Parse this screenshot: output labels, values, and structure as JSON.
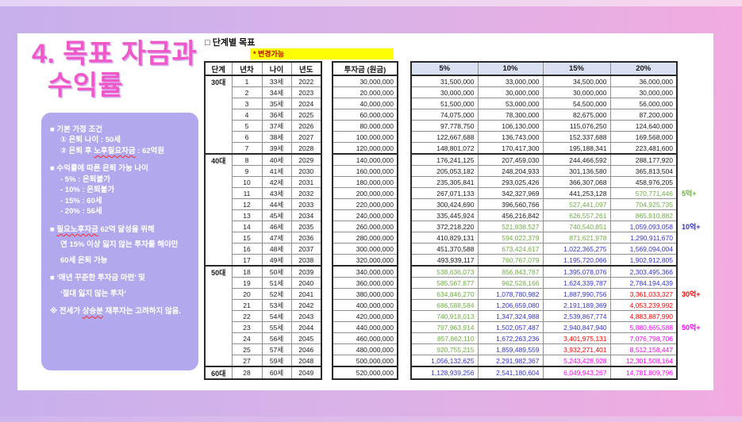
{
  "slide": {
    "title_line1": "4. 목표 자금과",
    "title_line2": "수익률"
  },
  "sidebar": {
    "sections": [
      {
        "lines": [
          {
            "indent": 0,
            "parts": [
              {
                "t": "■ 기본 가정 조건"
              }
            ]
          },
          {
            "indent": 1,
            "parts": [
              {
                "t": "① 은퇴 나이 : 50세"
              }
            ]
          },
          {
            "indent": 1,
            "parts": [
              {
                "t": "② 은퇴 후 "
              },
              {
                "t": "노후필요자금",
                "wavy": true
              },
              {
                "t": " : 62억원"
              }
            ]
          }
        ]
      },
      {
        "lines": [
          {
            "indent": 0,
            "parts": [
              {
                "t": "■ 수익률에 따른 은퇴 가능 나이"
              }
            ]
          },
          {
            "indent": 1,
            "parts": [
              {
                "t": "- 5% : 은퇴불가"
              }
            ]
          },
          {
            "indent": 1,
            "parts": [
              {
                "t": "- 10% : 은퇴불가"
              }
            ]
          },
          {
            "indent": 1,
            "parts": [
              {
                "t": "- 15% : 60세"
              }
            ]
          },
          {
            "indent": 1,
            "parts": [
              {
                "t": "- 20% : 56세"
              }
            ]
          }
        ]
      },
      {
        "lines": [
          {
            "indent": 0,
            "loose": true,
            "parts": [
              {
                "t": "■ "
              },
              {
                "t": "필요노후자금",
                "wavy": true
              },
              {
                "t": " 62억 달성을 위해"
              }
            ]
          },
          {
            "indent": 1,
            "loose": true,
            "parts": [
              {
                "t": "연 15% 이상  잃지 않는 투자를 해야만"
              }
            ]
          },
          {
            "indent": 1,
            "loose": true,
            "parts": [
              {
                "t": "60세 은퇴 가능"
              }
            ]
          }
        ]
      },
      {
        "lines": [
          {
            "indent": 0,
            "loose": true,
            "parts": [
              {
                "t": "■ ‘매년 꾸준한 투자금 마련’ 및"
              }
            ]
          },
          {
            "indent": 1,
            "loose": true,
            "parts": [
              {
                "t": "‘절대 잃지 않는 투자’"
              }
            ]
          }
        ]
      },
      {
        "lines": [
          {
            "indent": 0,
            "parts": [
              {
                "t": "※ 전세가 "
              },
              {
                "t": "상승분",
                "wavy": true
              },
              {
                "t": " 재투자는 고려하지 않음."
              }
            ]
          }
        ]
      }
    ]
  },
  "table": {
    "caption": "□ 단계별 목표",
    "note": "* 변경가능",
    "headers": {
      "stage": "단계",
      "no": "년차",
      "age": "나이",
      "year": "년도",
      "invest": "투자금 (원금)",
      "rates": [
        "5%",
        "10%",
        "15%",
        "20%"
      ]
    },
    "groups": [
      {
        "label": "30대",
        "rows": [
          {
            "no": "1",
            "age": "33세",
            "year": "2022",
            "invest": "30,000,000",
            "returns": [
              "31,500,000",
              "33,000,000",
              "34,500,000",
              "36,000,000"
            ]
          },
          {
            "no": "2",
            "age": "34세",
            "year": "2023",
            "invest": "20,000,000",
            "returns": [
              "30,000,000",
              "30,000,000",
              "30,000,000",
              "30,000,000"
            ]
          },
          {
            "no": "3",
            "age": "35세",
            "year": "2024",
            "invest": "40,000,000",
            "returns": [
              "51,500,000",
              "53,000,000",
              "54,500,000",
              "56,000,000"
            ]
          },
          {
            "no": "4",
            "age": "36세",
            "year": "2025",
            "invest": "60,000,000",
            "returns": [
              "74,075,000",
              "78,300,000",
              "82,675,000",
              "87,200,000"
            ]
          },
          {
            "no": "5",
            "age": "37세",
            "year": "2026",
            "invest": "80,000,000",
            "returns": [
              "97,778,750",
              "106,130,000",
              "115,076,250",
              "124,640,000"
            ]
          },
          {
            "no": "6",
            "age": "38세",
            "year": "2027",
            "invest": "100,000,000",
            "returns": [
              "122,667,688",
              "136,743,000",
              "152,337,688",
              "169,568,000"
            ]
          },
          {
            "no": "7",
            "age": "39세",
            "year": "2028",
            "invest": "120,000,000",
            "returns": [
              "148,801,072",
              "170,417,300",
              "195,188,341",
              "223,481,600"
            ]
          }
        ]
      },
      {
        "label": "40대",
        "rows": [
          {
            "no": "8",
            "age": "40세",
            "year": "2029",
            "invest": "140,000,000",
            "returns": [
              "176,241,125",
              "207,459,030",
              "244,466,592",
              "288,177,920"
            ]
          },
          {
            "no": "9",
            "age": "41세",
            "year": "2030",
            "invest": "160,000,000",
            "returns": [
              "205,053,182",
              "248,204,933",
              "301,136,580",
              "365,813,504"
            ]
          },
          {
            "no": "10",
            "age": "42세",
            "year": "2031",
            "invest": "180,000,000",
            "returns": [
              "235,305,841",
              "293,025,426",
              "366,307,068",
              "458,976,205"
            ]
          },
          {
            "no": "11",
            "age": "43세",
            "year": "2032",
            "invest": "200,000,000",
            "returns": [
              "267,071,133",
              "342,327,969",
              "441,253,128",
              "570,771,446"
            ],
            "ann": {
              "text": "5억+",
              "key": "val-green"
            }
          },
          {
            "no": "12",
            "age": "44세",
            "year": "2033",
            "invest": "220,000,000",
            "returns": [
              "300,424,690",
              "396,560,766",
              "527,441,097",
              "704,925,735"
            ]
          },
          {
            "no": "13",
            "age": "45세",
            "year": "2034",
            "invest": "240,000,000",
            "returns": [
              "335,445,924",
              "456,216,842",
              "626,557,261",
              "865,910,882"
            ]
          },
          {
            "no": "14",
            "age": "46세",
            "year": "2035",
            "invest": "260,000,000",
            "returns": [
              "372,218,220",
              "521,838,527",
              "740,540,851",
              "1,059,093,058"
            ],
            "ann": {
              "text": "10억+",
              "key": "val-blue"
            }
          },
          {
            "no": "15",
            "age": "47세",
            "year": "2036",
            "invest": "280,000,000",
            "returns": [
              "410,829,131",
              "594,022,379",
              "871,621,978",
              "1,290,911,670"
            ]
          },
          {
            "no": "16",
            "age": "48세",
            "year": "2037",
            "invest": "300,000,000",
            "returns": [
              "451,370,588",
              "673,424,617",
              "1,022,365,275",
              "1,569,094,004"
            ]
          },
          {
            "no": "17",
            "age": "49세",
            "year": "2038",
            "invest": "320,000,000",
            "returns": [
              "493,939,117",
              "760,767,079",
              "1,195,720,066",
              "1,902,912,805"
            ]
          }
        ]
      },
      {
        "label": "50대",
        "rows": [
          {
            "no": "18",
            "age": "50세",
            "year": "2039",
            "invest": "340,000,000",
            "returns": [
              "538,636,073",
              "856,843,787",
              "1,395,078,076",
              "2,303,495,366"
            ]
          },
          {
            "no": "19",
            "age": "51세",
            "year": "2040",
            "invest": "360,000,000",
            "returns": [
              "585,567,877",
              "962,528,166",
              "1,624,339,787",
              "2,784,194,439"
            ]
          },
          {
            "no": "20",
            "age": "52세",
            "year": "2041",
            "invest": "380,000,000",
            "returns": [
              "634,846,270",
              "1,078,780,982",
              "1,887,990,756",
              "3,361,033,327"
            ],
            "ann": {
              "text": "30억+",
              "key": "val-red"
            }
          },
          {
            "no": "21",
            "age": "53세",
            "year": "2042",
            "invest": "400,000,000",
            "returns": [
              "686,588,584",
              "1,206,659,080",
              "2,191,189,369",
              "4,053,239,992"
            ]
          },
          {
            "no": "22",
            "age": "54세",
            "year": "2043",
            "invest": "420,000,000",
            "returns": [
              "740,918,013",
              "1,347,324,988",
              "2,539,867,774",
              "4,883,887,990"
            ]
          },
          {
            "no": "23",
            "age": "55세",
            "year": "2044",
            "invest": "440,000,000",
            "returns": [
              "797,963,914",
              "1,502,057,487",
              "2,940,847,940",
              "5,880,665,588"
            ],
            "ann": {
              "text": "50억+",
              "key": "val-magenta"
            }
          },
          {
            "no": "24",
            "age": "56세",
            "year": "2045",
            "invest": "460,000,000",
            "returns": [
              "857,862,110",
              "1,672,263,236",
              "3,401,975,131",
              "7,076,798,706"
            ]
          },
          {
            "no": "25",
            "age": "57세",
            "year": "2046",
            "invest": "480,000,000",
            "returns": [
              "920,755,215",
              "1,859,489,559",
              "3,932,271,401",
              "8,512,158,447"
            ]
          },
          {
            "no": "27",
            "age": "59세",
            "year": "2048",
            "invest": "500,000,000",
            "returns": [
              "1,056,132,625",
              "2,291,982,367",
              "5,243,428,928",
              "12,301,508,164"
            ]
          }
        ]
      },
      {
        "label": "60대",
        "rows": [
          {
            "no": "28",
            "age": "60세",
            "year": "2049",
            "invest": "520,000,000",
            "returns": [
              "1,128,939,256",
              "2,541,180,604",
              "6,049,943,267",
              "14,781,809,796"
            ]
          }
        ]
      }
    ],
    "value_colors": [
      {
        "min": 5000000000,
        "key": "val-magenta"
      },
      {
        "min": 3000000000,
        "key": "val-red"
      },
      {
        "min": 1000000000,
        "key": "val-blue"
      },
      {
        "min": 500000000,
        "key": "val-green"
      },
      {
        "min": 0,
        "key": "val-black"
      }
    ]
  },
  "colors": {
    "title-pink": "#ef58c8",
    "sidebar-bg": "#b1a8ed",
    "panel-bg": "#ffffff",
    "bg-left": "#c7b0ec",
    "bg-right": "#f3abdf",
    "note-bg": "#ffff00",
    "note-text": "#c00000",
    "pct-header-bg": "#d9e1f2",
    "grid": "#909090",
    "grid-heavy": "#2a2a2a",
    "val-green": "#70ad47",
    "val-blue": "#3434d0",
    "val-red": "#ff0000",
    "val-magenta": "#ff00ff",
    "val-black": "#1a1a1a"
  }
}
